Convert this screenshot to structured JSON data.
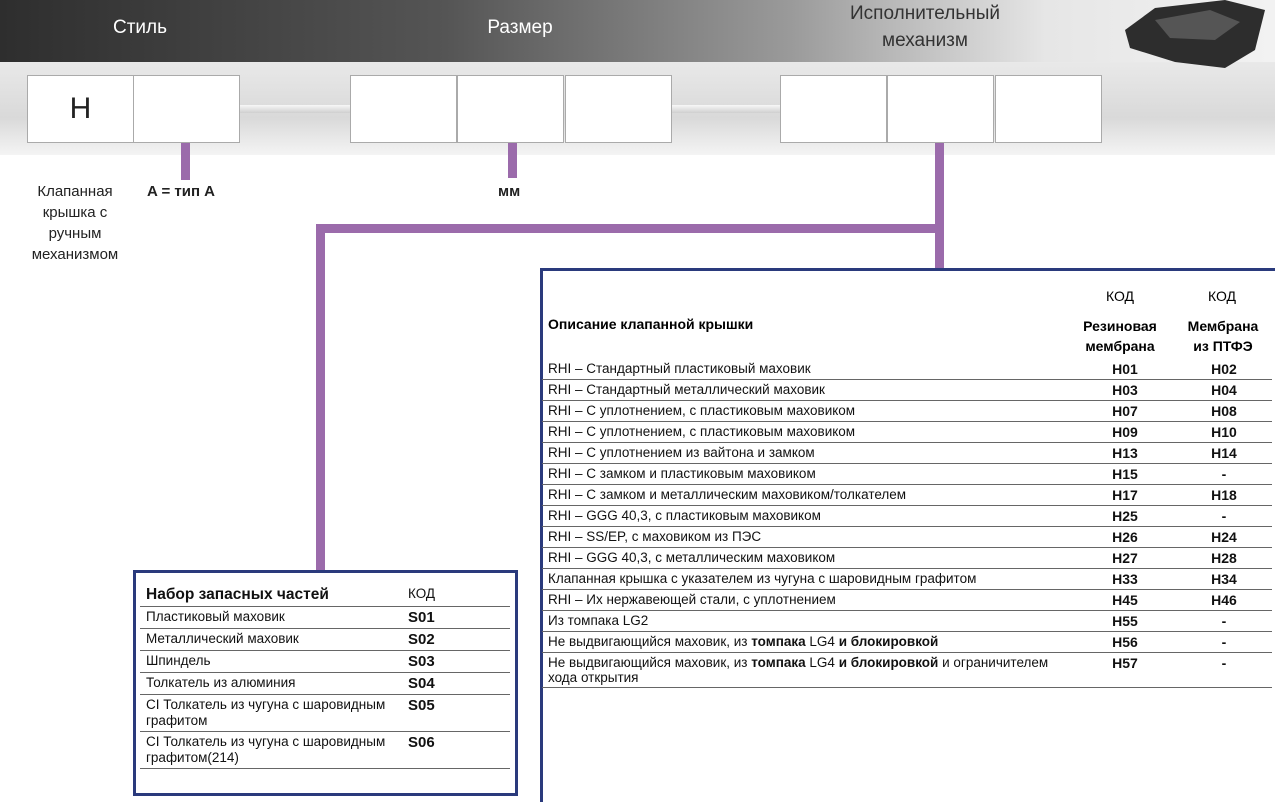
{
  "header": {
    "style_label": "Стиль",
    "size_label": "Размер",
    "actuator_label": "Исполнительный механизм"
  },
  "code_boxes": {
    "first": "H"
  },
  "annotations": {
    "style_desc": "Клапанная крышка с ручным механизмом",
    "type": "A = тип A",
    "size_unit": "мм"
  },
  "cover_table": {
    "code_header_1": "КОД",
    "code_header_2": "КОД",
    "description_header": "Описание клапанной крышки",
    "rubber_header": "Резиновая мембрана",
    "ptfe_header": "Мембрана из ПТФЭ",
    "rows": [
      {
        "description": "RHI – Стандартный пластиковый маховик",
        "rubber": "H01",
        "ptfe": "H02"
      },
      {
        "description": "RHI – Стандартный металлический маховик",
        "rubber": "H03",
        "ptfe": "H04"
      },
      {
        "description": "RHI – С уплотнением, с пластиковым маховиком",
        "rubber": "H07",
        "ptfe": "H08"
      },
      {
        "description": "RHI – С уплотнением, с пластиковым маховиком",
        "rubber": "H09",
        "ptfe": "H10"
      },
      {
        "description": "RHI – С уплотнением из вайтона и замком",
        "rubber": "H13",
        "ptfe": "H14"
      },
      {
        "description": "RHI – С замком и пластиковым маховиком",
        "rubber": "H15",
        "ptfe": "-"
      },
      {
        "description": "RHI – С замком и металлическим маховиком/толкателем",
        "rubber": "H17",
        "ptfe": "H18"
      },
      {
        "description": "RHI – GGG 40,3, с пластиковым маховиком",
        "rubber": "H25",
        "ptfe": "-"
      },
      {
        "description": "RHI  – SS/EP, с маховиком из ПЭС",
        "rubber": "H26",
        "ptfe": "H24"
      },
      {
        "description": "RHI – GGG 40,3, с металлическим маховиком",
        "rubber": "H27",
        "ptfe": "H28"
      },
      {
        "description": "Клапанная крышка с указателем из чугуна с шаровидным графитом",
        "rubber": "H33",
        "ptfe": "H34"
      },
      {
        "description": "RHI – Их нержавеющей стали, с уплотнением",
        "rubber": "H45",
        "ptfe": "H46"
      },
      {
        "description": "Из томпака LG2",
        "rubber": "H55",
        "ptfe": "-"
      },
      {
        "description": [
          {
            "text": "Не выдвигающийся маховик, из ",
            "bold": false
          },
          {
            "text": "томпака",
            "bold": true
          },
          {
            "text": " LG4 ",
            "bold": false
          },
          {
            "text": "и блокировкой",
            "bold": true
          }
        ],
        "rubber": "H56",
        "ptfe": "-"
      },
      {
        "description": [
          {
            "text": "Не выдвигающийся маховик, из ",
            "bold": false
          },
          {
            "text": "томпака",
            "bold": true
          },
          {
            "text": " LG4 ",
            "bold": false
          },
          {
            "text": "и блокировкой",
            "bold": true
          },
          {
            "text": " и ограничителем хода открытия",
            "bold": false
          }
        ],
        "rubber": "H57",
        "ptfe": "-"
      }
    ]
  },
  "spare_table": {
    "title": "Набор запасных частей",
    "code_header": "КОД",
    "rows": [
      {
        "part": "Пластиковый маховик",
        "code": "S01"
      },
      {
        "part": "Металлический маховик",
        "code": "S02"
      },
      {
        "part": "Шпиндель",
        "code": "S03"
      },
      {
        "part": "Толкатель из алюминия",
        "code": "S04"
      },
      {
        "part": "CI Толкатель из чугуна с шаровидным графитом",
        "code": "S05"
      },
      {
        "part": "CI Толкатель из чугуна с шаровидным графитом(214)",
        "code": "S06"
      }
    ]
  }
}
